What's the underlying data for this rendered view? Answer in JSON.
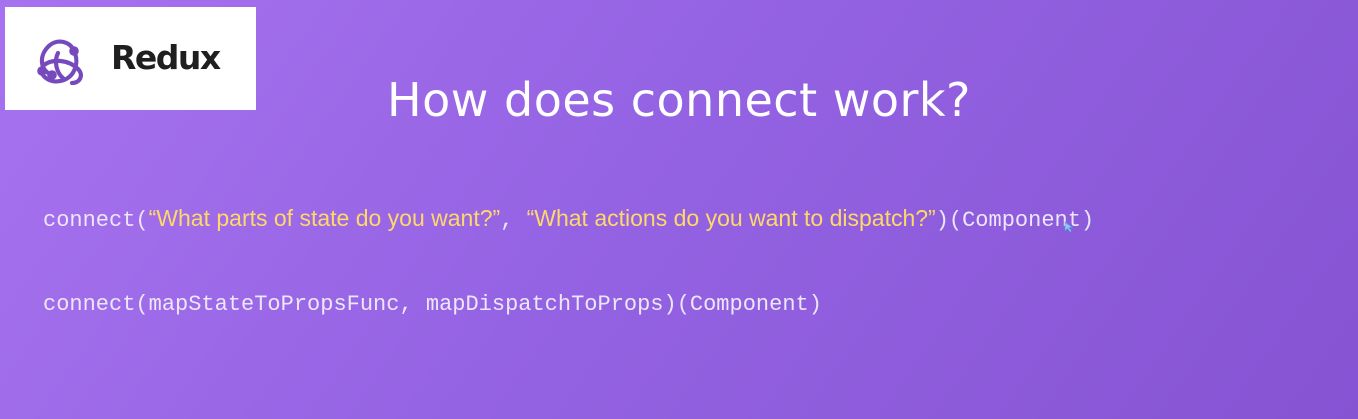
{
  "logo": {
    "icon": "redux-logo-icon",
    "brand_text": "Redux"
  },
  "slide": {
    "title": "How does connect work?"
  },
  "line1": {
    "fn": "connect",
    "open_paren": "(",
    "arg1": "“What parts of state do you want?”",
    "comma": ", ",
    "arg2": "“What actions do you want to dispatch?”",
    "close_paren": ")",
    "component": "(Component)"
  },
  "line2": {
    "text": "connect(mapStateToPropsFunc, mapDispatchToProps)(Component)"
  },
  "colors": {
    "background_start": "#a772ef",
    "background_end": "#8654d3",
    "quote_text": "#ffd86a",
    "code_text": "#ece6fb",
    "logo_purple": "#764abc"
  }
}
